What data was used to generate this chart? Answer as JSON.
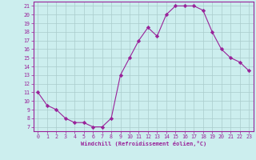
{
  "x": [
    0,
    1,
    2,
    3,
    4,
    5,
    6,
    7,
    8,
    9,
    10,
    11,
    12,
    13,
    14,
    15,
    16,
    17,
    18,
    19,
    20,
    21,
    22,
    23
  ],
  "y": [
    11,
    9.5,
    9,
    8,
    7.5,
    7.5,
    7,
    7,
    8,
    13,
    15,
    17,
    18.5,
    17.5,
    20,
    21,
    21,
    21,
    20.5,
    18,
    16,
    15,
    14.5,
    13.5
  ],
  "line_color": "#992299",
  "marker": "D",
  "marker_size": 2.2,
  "bg_color": "#cceeee",
  "grid_color": "#aacccc",
  "xlabel": "Windchill (Refroidissement éolien,°C)",
  "xlabel_color": "#992299",
  "tick_color": "#992299",
  "spine_color": "#992299",
  "xlim": [
    -0.5,
    23.5
  ],
  "ylim": [
    6.5,
    21.5
  ],
  "yticks": [
    7,
    8,
    9,
    10,
    11,
    12,
    13,
    14,
    15,
    16,
    17,
    18,
    19,
    20,
    21
  ],
  "xticks": [
    0,
    1,
    2,
    3,
    4,
    5,
    6,
    7,
    8,
    9,
    10,
    11,
    12,
    13,
    14,
    15,
    16,
    17,
    18,
    19,
    20,
    21,
    22,
    23
  ]
}
